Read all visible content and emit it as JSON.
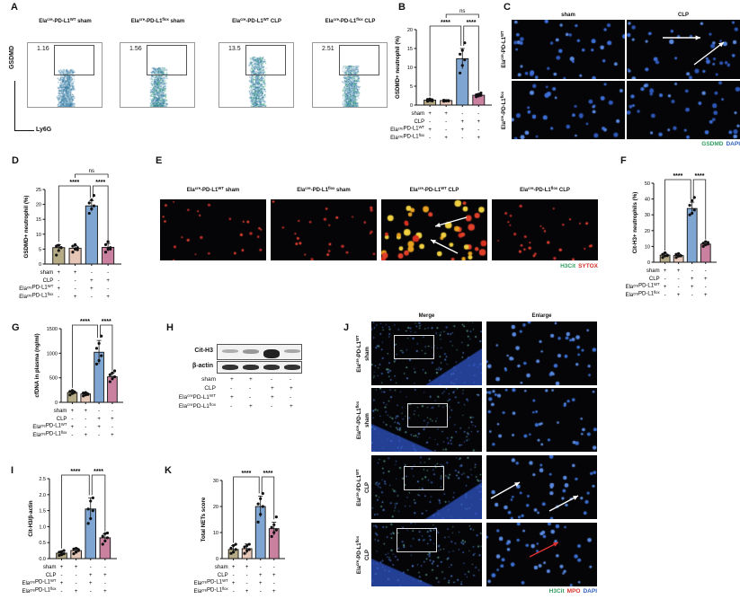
{
  "panel_letters": [
    "A",
    "B",
    "C",
    "D",
    "E",
    "F",
    "G",
    "H",
    "I",
    "J",
    "K"
  ],
  "panel_a": {
    "y_axis": "GSDMD",
    "x_axis": "Ly6G",
    "plots": [
      {
        "title": "Ela-cre-PD-L1WT sham",
        "pre": "Ela",
        "sup1": "cre",
        "mid": "-PD-L1",
        "sup2": "WT",
        "post": " sham",
        "gate_value": "1.16"
      },
      {
        "title": "Ela-cre-PD-L1flox sham",
        "pre": "Ela",
        "sup1": "cre",
        "mid": "-PD-L1",
        "sup2": "flox",
        "post": " sham",
        "gate_value": "1.56"
      },
      {
        "title": "Ela-cre-PD-L1WT CLP",
        "pre": "Ela",
        "sup1": "cre",
        "mid": "-PD-L1",
        "sup2": "WT",
        "post": " CLP",
        "gate_value": "13.5"
      },
      {
        "title": "Ela-cre-PD-L1flox CLP",
        "pre": "Ela",
        "sup1": "cre",
        "mid": "-PD-L1",
        "sup2": "flox",
        "post": " CLP",
        "gate_value": "2.51"
      }
    ]
  },
  "panel_c": {
    "columns": [
      "sham",
      "CLP"
    ],
    "rows": [
      {
        "sup": "WT"
      },
      {
        "sup": "flox"
      }
    ],
    "row_pre": "Ela",
    "row_cre": "cre",
    "row_mid": "-PD-L1",
    "legend": [
      {
        "text": "GSDMD",
        "color": "#2e9e5e"
      },
      {
        "text": "DAPI",
        "color": "#2f5fbf"
      }
    ]
  },
  "panel_e": {
    "titles": [
      {
        "sup2": "WT",
        "post": " sham"
      },
      {
        "sup2": "flox",
        "post": " sham"
      },
      {
        "sup2": "WT",
        "post": " CLP"
      },
      {
        "sup2": "flox",
        "post": " CLP"
      }
    ],
    "legend": [
      {
        "text": "H3Cit",
        "color": "#2e9e5e"
      },
      {
        "text": "SYTOX",
        "color": "#d8322a"
      }
    ]
  },
  "panel_h": {
    "bands": [
      "Cit-H3",
      "β-actin"
    ],
    "cit_h3_intensity": [
      0.15,
      0.3,
      1.0,
      0.2
    ],
    "rows": [
      {
        "label": "sham",
        "signs": [
          "+",
          "+",
          "-",
          "-"
        ]
      },
      {
        "label": "CLP",
        "signs": [
          "-",
          "-",
          "+",
          "+"
        ]
      },
      {
        "label": "Ela",
        "sup": "cre",
        "mid": "PD-L1",
        "sup2": "WT",
        "signs": [
          "+",
          "-",
          "+",
          "-"
        ]
      },
      {
        "label": "Ela",
        "sup": "cre",
        "mid": "PD-L1",
        "sup2": "flox",
        "signs": [
          "-",
          "+",
          "-",
          "+"
        ]
      }
    ]
  },
  "panel_j": {
    "columns": [
      "Merge",
      "Enlarge"
    ],
    "rows": [
      {
        "sup": "WT",
        "cond": "sham"
      },
      {
        "sup": "flox",
        "cond": "sham"
      },
      {
        "sup": "WT",
        "cond": "CLP"
      },
      {
        "sup": "flox",
        "cond": "CLP"
      }
    ],
    "legend": [
      {
        "text": "H3Cit",
        "color": "#2e9e5e"
      },
      {
        "text": "MPO",
        "color": "#d8322a"
      },
      {
        "text": "DAPI",
        "color": "#2f5fbf"
      }
    ]
  },
  "group_colors": [
    "#b5ab86",
    "#e6c6b6",
    "#7fa6d2",
    "#c9819f"
  ],
  "chart_data": [
    {
      "panel": "B",
      "type": "bar",
      "ylabel": "GSDMD+ neutrophil (%)",
      "ylim": [
        0,
        20
      ],
      "yticks": [
        0,
        5,
        10,
        15,
        20
      ],
      "values": [
        1.3,
        1.2,
        12.3,
        2.6
      ],
      "errors": [
        0.3,
        0.2,
        2.7,
        0.4
      ],
      "points": [
        [
          1.0,
          1.2,
          1.4,
          1.5,
          1.6,
          1.1
        ],
        [
          1.0,
          1.1,
          1.2,
          1.3,
          1.2,
          1.1
        ],
        [
          8.5,
          10.5,
          12,
          13.5,
          14.5,
          16.5
        ],
        [
          2.2,
          2.4,
          2.6,
          2.7,
          2.9,
          3.2
        ]
      ],
      "significance": [
        {
          "from": 0,
          "to": 2,
          "label": "****"
        },
        {
          "from": 2,
          "to": 3,
          "label": "****"
        },
        {
          "from": 1,
          "to": 3,
          "label": "ns"
        }
      ]
    },
    {
      "panel": "D",
      "type": "bar",
      "ylabel": "GSDMD+ neutrophil (%)",
      "ylim": [
        0,
        25
      ],
      "yticks": [
        0,
        5,
        10,
        15,
        20,
        25
      ],
      "values": [
        5.5,
        5.3,
        19.5,
        5.6
      ],
      "errors": [
        1.0,
        0.9,
        1.8,
        1.3
      ],
      "points": [
        [
          3.0,
          4.5,
          5.5,
          6.0,
          6.3,
          5.5
        ],
        [
          4.0,
          5.0,
          5.5,
          6.0,
          6.5,
          4.8
        ],
        [
          17.0,
          18.5,
          19.5,
          20.5,
          21.5,
          23.0
        ],
        [
          4.0,
          5.0,
          5.5,
          6.5,
          7.5,
          5.0
        ]
      ],
      "significance": [
        {
          "from": 0,
          "to": 2,
          "label": "****"
        },
        {
          "from": 2,
          "to": 3,
          "label": "****"
        },
        {
          "from": 1,
          "to": 3,
          "label": "ns"
        }
      ]
    },
    {
      "panel": "F",
      "type": "bar",
      "ylabel": "Cit-H3+ neutrophils (%)",
      "ylim": [
        0,
        50
      ],
      "yticks": [
        0,
        10,
        20,
        30,
        40,
        50
      ],
      "values": [
        4.5,
        4.2,
        34,
        11.5
      ],
      "errors": [
        1.2,
        1.0,
        4.0,
        1.2
      ],
      "points": [
        [
          3.0,
          4.0,
          4.5,
          5.0,
          6.0,
          4.2
        ],
        [
          3.0,
          3.8,
          4.2,
          5.0,
          5.5,
          4.0
        ],
        [
          30,
          31,
          33,
          36,
          39,
          41
        ],
        [
          10,
          11,
          11.5,
          12,
          13,
          12.5
        ]
      ],
      "significance": [
        {
          "from": 0,
          "to": 2,
          "label": "****"
        },
        {
          "from": 2,
          "to": 3,
          "label": "****"
        }
      ]
    },
    {
      "panel": "G",
      "type": "bar",
      "ylabel": "cfDNA in plasma (ng/ml)",
      "ylim": [
        0,
        1500
      ],
      "yticks": [
        0,
        500,
        1000,
        1500
      ],
      "values": [
        200,
        170,
        1020,
        520
      ],
      "errors": [
        40,
        30,
        240,
        70
      ],
      "points": [
        [
          150,
          180,
          200,
          220,
          240,
          210
        ],
        [
          130,
          150,
          170,
          190,
          200,
          160
        ],
        [
          780,
          850,
          950,
          1100,
          1200,
          1350
        ],
        [
          420,
          480,
          520,
          560,
          600,
          640
        ]
      ],
      "significance": [
        {
          "from": 0,
          "to": 2,
          "label": "****"
        },
        {
          "from": 2,
          "to": 3,
          "label": "****"
        }
      ]
    },
    {
      "panel": "I",
      "type": "bar",
      "ylabel": "Cit-H3/β-actin",
      "ylim": [
        0,
        2.5
      ],
      "yticks": [
        0,
        0.5,
        1.0,
        1.5,
        2.0,
        2.5
      ],
      "ytick_labels": [
        "0.0",
        "0.5",
        "1.0",
        "1.5",
        "2.0",
        "2.5"
      ],
      "values": [
        0.17,
        0.25,
        1.55,
        0.65
      ],
      "errors": [
        0.06,
        0.08,
        0.35,
        0.12
      ],
      "points": [
        [
          0.1,
          0.12,
          0.15,
          0.2,
          0.22,
          0.25
        ],
        [
          0.15,
          0.2,
          0.25,
          0.3,
          0.32,
          0.28
        ],
        [
          1.1,
          1.25,
          1.5,
          1.55,
          1.8,
          1.9
        ],
        [
          0.45,
          0.55,
          0.65,
          0.7,
          0.78,
          0.8
        ]
      ],
      "significance": [
        {
          "from": 0,
          "to": 2,
          "label": "****"
        },
        {
          "from": 2,
          "to": 3,
          "label": "****"
        }
      ]
    },
    {
      "panel": "K",
      "type": "bar",
      "ylabel": "Total NETs score",
      "ylim": [
        0,
        30
      ],
      "yticks": [
        0,
        10,
        20,
        30
      ],
      "values": [
        3.5,
        3.8,
        20,
        11.5
      ],
      "errors": [
        1.5,
        1.8,
        4.0,
        2.5
      ],
      "points": [
        [
          2,
          2.5,
          3.5,
          4,
          5,
          5.5
        ],
        [
          2,
          3,
          3.5,
          4.5,
          5,
          5.5
        ],
        [
          14,
          17,
          20,
          21,
          23,
          25
        ],
        [
          8.5,
          10,
          11,
          12,
          13,
          16
        ]
      ],
      "significance": [
        {
          "from": 0,
          "to": 2,
          "label": "****"
        },
        {
          "from": 2,
          "to": 3,
          "label": "****"
        }
      ]
    }
  ],
  "group_table": [
    {
      "label": "sham",
      "signs": [
        "+",
        "+",
        "-",
        "-"
      ]
    },
    {
      "label": "CLP",
      "signs": [
        "-",
        "-",
        "+",
        "+"
      ]
    },
    {
      "label": "Ela",
      "sup": "cre",
      "mid": "PD-L1",
      "sup2": "WT",
      "signs": [
        "+",
        "-",
        "+",
        "-"
      ]
    },
    {
      "label": "Ela",
      "sup": "cre",
      "mid": "PD-L1",
      "sup2": "flox",
      "signs": [
        "-",
        "+",
        "-",
        "+"
      ]
    }
  ]
}
